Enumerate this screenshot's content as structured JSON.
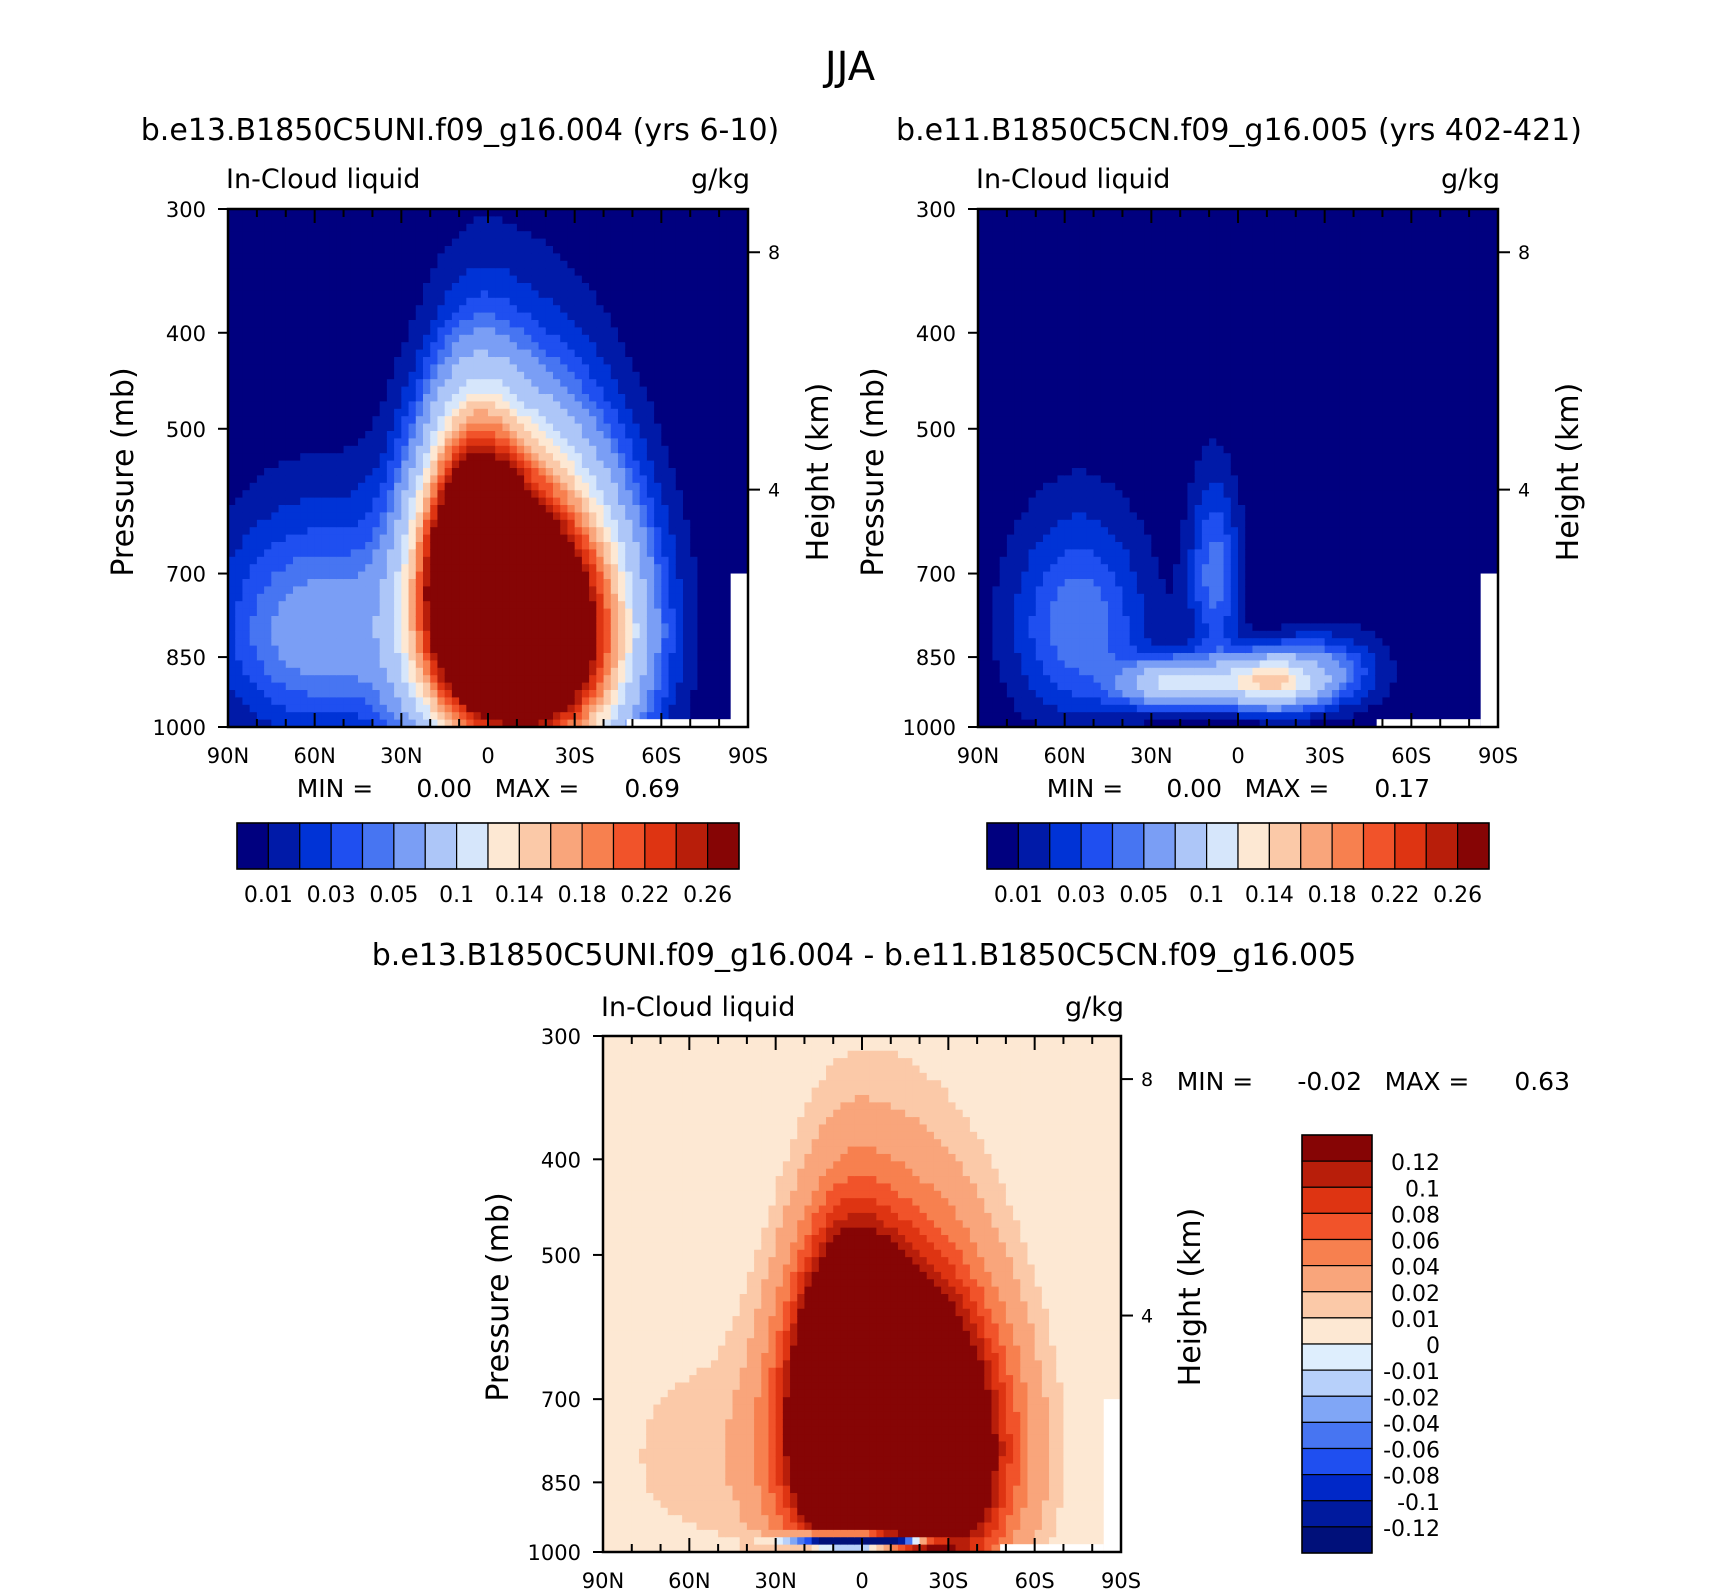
{
  "figure": {
    "title": "JJA",
    "colors": {
      "seq": [
        "#00007f",
        "#001aa8",
        "#0033d6",
        "#1f4ff0",
        "#4775f2",
        "#7a9ef5",
        "#adc6f8",
        "#d6e6fb",
        "#fde8d3",
        "#fbc9a8",
        "#f9a57b",
        "#f7804f",
        "#f1532a",
        "#de3412",
        "#b81e0a",
        "#860505"
      ],
      "diff": [
        "#00107a",
        "#001a9e",
        "#0028c8",
        "#1f4ff0",
        "#4775f2",
        "#80a6f6",
        "#b7d0fa",
        "#deeefd",
        "#fde8d3",
        "#fbc9a8",
        "#f9a57b",
        "#f7804f",
        "#f1532a",
        "#de3412",
        "#b81e0a",
        "#860505"
      ]
    }
  },
  "chart_data": [
    {
      "type": "heatmap",
      "panel": "top-left",
      "title": "b.e13.B1850C5UNI.f09_g16.004 (yrs 6-10)",
      "left_label": "In-Cloud liquid",
      "right_label": "g/kg",
      "xlabel": "",
      "ylabel": "Pressure (mb)",
      "y2label": "Height (km)",
      "x_ticks": [
        "90N",
        "60N",
        "30N",
        "0",
        "30S",
        "60S",
        "90S"
      ],
      "x_range": [
        90,
        -90
      ],
      "y_ticks": [
        "300",
        "400",
        "500",
        "700",
        "850",
        "1000"
      ],
      "y_tick_values": [
        300,
        400,
        500,
        700,
        850,
        1000
      ],
      "y_range": [
        300,
        1000
      ],
      "y2_ticks": [
        "8",
        "4"
      ],
      "y2_tick_values": [
        8,
        4
      ],
      "min_label": "MIN =",
      "min_value": "0.00",
      "max_label": "MAX =",
      "max_value": "0.69",
      "colorbar_labels": [
        "0.01",
        "0.03",
        "0.05",
        "0.1",
        "0.14",
        "0.18",
        "0.22",
        "0.26"
      ],
      "levels": [
        0.01,
        0.02,
        0.03,
        0.04,
        0.05,
        0.07,
        0.1,
        0.12,
        0.14,
        0.16,
        0.18,
        0.2,
        0.22,
        0.24,
        0.26
      ],
      "blobs": [
        {
          "lat": -12,
          "p": 800,
          "slat": 31,
          "sp": 240,
          "amp": 0.5
        },
        {
          "lat": 5,
          "p": 680,
          "slat": 16,
          "sp": 180,
          "amp": 0.32
        },
        {
          "lat": 62,
          "p": 800,
          "slat": 32,
          "sp": 200,
          "amp": 0.058
        }
      ],
      "missing_ranges": [
        {
          "lat_from": -48,
          "lat_to": -88,
          "p_from": 982,
          "p_to": 1000
        },
        {
          "lat_from": -84,
          "lat_to": -90,
          "p_from": 700,
          "p_to": 1000
        }
      ]
    },
    {
      "type": "heatmap",
      "panel": "top-right",
      "title": "b.e11.B1850C5CN.f09_g16.005 (yrs 402-421)",
      "left_label": "In-Cloud liquid",
      "right_label": "g/kg",
      "xlabel": "",
      "ylabel": "Pressure (mb)",
      "y2label": "Height (km)",
      "x_ticks": [
        "90N",
        "60N",
        "30N",
        "0",
        "30S",
        "60S",
        "90S"
      ],
      "x_range": [
        90,
        -90
      ],
      "y_ticks": [
        "300",
        "400",
        "500",
        "700",
        "850",
        "1000"
      ],
      "y_tick_values": [
        300,
        400,
        500,
        700,
        850,
        1000
      ],
      "y_range": [
        300,
        1000
      ],
      "y2_ticks": [
        "8",
        "4"
      ],
      "y2_tick_values": [
        8,
        4
      ],
      "min_label": "MIN =",
      "min_value": "0.00",
      "max_label": "MAX =",
      "max_value": "0.17",
      "colorbar_labels": [
        "0.01",
        "0.03",
        "0.05",
        "0.1",
        "0.14",
        "0.18",
        "0.22",
        "0.26"
      ],
      "levels": [
        0.01,
        0.02,
        0.03,
        0.04,
        0.05,
        0.07,
        0.1,
        0.12,
        0.14,
        0.16,
        0.18,
        0.2,
        0.22,
        0.24,
        0.26
      ],
      "blobs": [
        {
          "lat": -10,
          "p": 900,
          "slat": 17,
          "sp": 55,
          "amp": 0.13
        },
        {
          "lat": 22,
          "p": 905,
          "slat": 17,
          "sp": 50,
          "amp": 0.105
        },
        {
          "lat": 8,
          "p": 700,
          "slat": 9,
          "sp": 150,
          "amp": 0.045
        },
        {
          "lat": 55,
          "p": 790,
          "slat": 24,
          "sp": 190,
          "amp": 0.048
        },
        {
          "lat": -30,
          "p": 880,
          "slat": 20,
          "sp": 80,
          "amp": 0.045
        }
      ],
      "missing_ranges": [
        {
          "lat_from": -48,
          "lat_to": -84,
          "p_from": 982,
          "p_to": 1000
        },
        {
          "lat_from": -84,
          "lat_to": -90,
          "p_from": 700,
          "p_to": 1000
        }
      ]
    },
    {
      "type": "heatmap",
      "panel": "bottom",
      "title": "b.e13.B1850C5UNI.f09_g16.004 - b.e11.B1850C5CN.f09_g16.005",
      "left_label": "In-Cloud liquid",
      "right_label": "g/kg",
      "xlabel": "",
      "ylabel": "Pressure (mb)",
      "y2label": "Height (km)",
      "x_ticks": [
        "90N",
        "60N",
        "30N",
        "0",
        "30S",
        "60S",
        "90S"
      ],
      "x_range": [
        90,
        -90
      ],
      "y_ticks": [
        "300",
        "400",
        "500",
        "700",
        "850",
        "1000"
      ],
      "y_tick_values": [
        300,
        400,
        500,
        700,
        850,
        1000
      ],
      "y_range": [
        300,
        1000
      ],
      "y2_ticks": [
        "8",
        "4"
      ],
      "y2_tick_values": [
        8,
        4
      ],
      "min_label": "MIN =",
      "min_value": "-0.02",
      "max_label": "MAX =",
      "max_value": "0.63",
      "colorbar_labels": [
        "0.12",
        "0.1",
        "0.08",
        "0.06",
        "0.04",
        "0.02",
        "0.01",
        "0",
        "-0.01",
        "-0.02",
        "-0.04",
        "-0.06",
        "-0.08",
        "-0.1",
        "-0.12"
      ],
      "levels": [
        -0.12,
        -0.1,
        -0.08,
        -0.06,
        -0.04,
        -0.02,
        -0.01,
        0,
        0.01,
        0.02,
        0.04,
        0.06,
        0.08,
        0.1,
        0.12
      ],
      "blobs": [
        {
          "lat": -12,
          "p": 790,
          "slat": 30,
          "sp": 240,
          "amp": 0.45
        },
        {
          "lat": 5,
          "p": 680,
          "slat": 16,
          "sp": 180,
          "amp": 0.25
        },
        {
          "lat": 60,
          "p": 800,
          "slat": 28,
          "sp": 200,
          "amp": 0.014
        },
        {
          "lat": -2,
          "p": 975,
          "slat": 20,
          "sp": 18,
          "amp": -0.5
        }
      ],
      "missing_ranges": [
        {
          "lat_from": -48,
          "lat_to": -84,
          "p_from": 982,
          "p_to": 1000
        },
        {
          "lat_from": -84,
          "lat_to": -90,
          "p_from": 700,
          "p_to": 1000
        }
      ]
    }
  ]
}
